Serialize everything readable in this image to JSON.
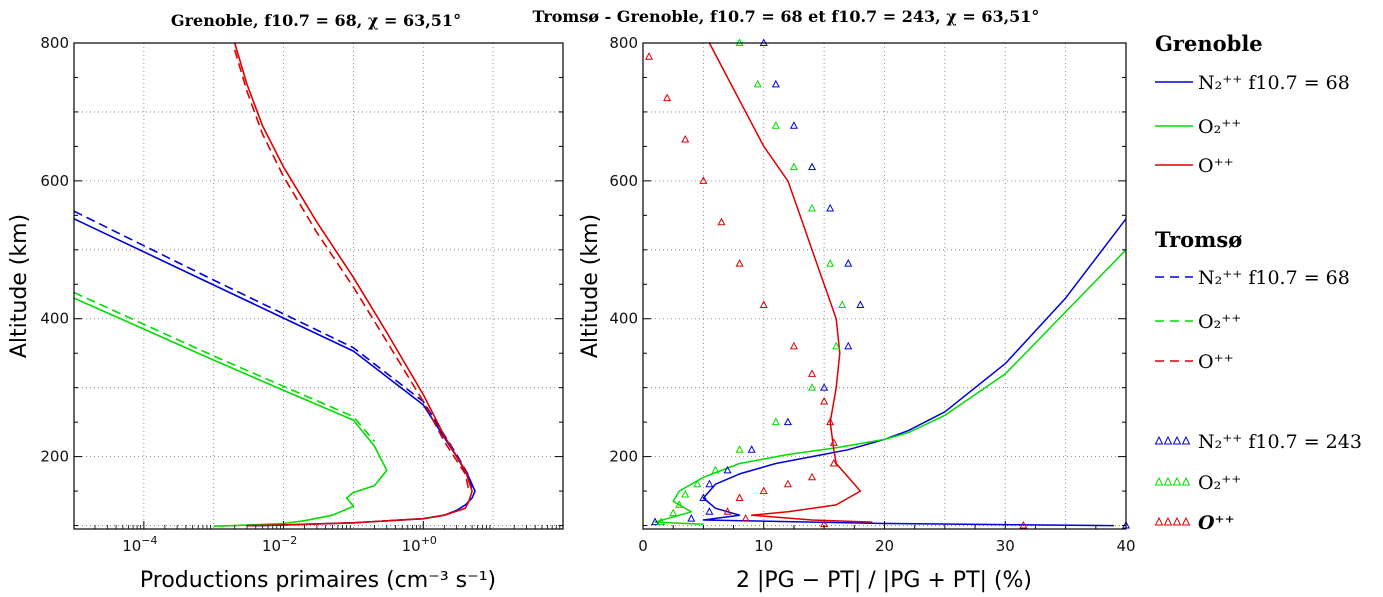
{
  "chart_data": [
    {
      "type": "line",
      "title": "Grenoble, f10.7 = 68, χ = 63,51°",
      "xlabel": "Productions primaires (cm⁻³ s⁻¹)",
      "ylabel": "Altitude (km)",
      "xscale": "log",
      "xlim": [
        1e-05,
        100
      ],
      "ylim": [
        95,
        800
      ],
      "x_ticks": [
        0.0001,
        0.01,
        1
      ],
      "x_tick_labels": [
        "10",
        "10",
        "10"
      ],
      "x_tick_exponents": [
        "−4",
        "−2",
        "+0"
      ],
      "y_ticks": [
        200,
        400,
        600,
        800
      ],
      "grid": true,
      "series": [
        {
          "name": "N2++ Grenoble",
          "color": "#0000dd",
          "dash": "solid",
          "x": [
            1e-05,
            0.0001,
            0.001,
            0.01,
            0.1,
            1,
            3,
            4.5,
            5.5,
            5,
            4,
            3,
            2,
            1,
            0.1,
            0.01,
            0.005,
            0.003
          ],
          "y": [
            545,
            497,
            449,
            401,
            353,
            275,
            200,
            170,
            150,
            140,
            130,
            122,
            115,
            110,
            104,
            101,
            100,
            100
          ]
        },
        {
          "name": "N2++ Tromsø",
          "color": "#0000dd",
          "dash": "dashed",
          "x": [
            1e-05,
            0.0001,
            0.001,
            0.01,
            0.1,
            1,
            3,
            4.5,
            5
          ],
          "y": [
            556,
            506,
            456,
            407,
            358,
            280,
            203,
            172,
            155
          ]
        },
        {
          "name": "O2++ Grenoble",
          "color": "#00dd00",
          "dash": "solid",
          "x": [
            1e-05,
            0.0001,
            0.001,
            0.01,
            0.1,
            0.2,
            0.3,
            0.2,
            0.1,
            0.08,
            0.1,
            0.05,
            0.02,
            0.01,
            0.002,
            0.001
          ],
          "y": [
            430,
            385,
            340,
            296,
            253,
            215,
            180,
            158,
            148,
            140,
            128,
            115,
            107,
            103,
            100,
            99
          ]
        },
        {
          "name": "O2++ Tromsø",
          "color": "#00dd00",
          "dash": "dashed",
          "x": [
            1e-05,
            0.0001,
            0.001,
            0.01,
            0.1,
            0.2
          ],
          "y": [
            438,
            392,
            346,
            302,
            258,
            222
          ]
        },
        {
          "name": "O++ Grenoble",
          "color": "#dd0000",
          "dash": "solid",
          "x": [
            0.002,
            0.003,
            0.005,
            0.01,
            0.03,
            0.1,
            0.3,
            1,
            2,
            4,
            5,
            4.5,
            4,
            2,
            1,
            0.1,
            0.01,
            0.003
          ],
          "y": [
            800,
            740,
            680,
            620,
            540,
            460,
            380,
            290,
            230,
            180,
            150,
            135,
            125,
            115,
            110,
            104,
            101,
            100
          ]
        },
        {
          "name": "O++ Tromsø",
          "color": "#dd0000",
          "dash": "dashed",
          "x": [
            0.002,
            0.003,
            0.005,
            0.01,
            0.03,
            0.1,
            0.3,
            1,
            2,
            4,
            4.5
          ],
          "y": [
            790,
            730,
            668,
            606,
            525,
            446,
            367,
            280,
            222,
            175,
            150
          ]
        }
      ]
    },
    {
      "type": "line",
      "title": "Tromsø - Grenoble, f10.7 = 68 et f10.7 = 243, χ = 63,51°",
      "xlabel": "2 |PG − PT| / |PG + PT| (%)",
      "ylabel": "Altitude (km)",
      "xlim": [
        0,
        40
      ],
      "ylim": [
        95,
        800
      ],
      "x_ticks": [
        0,
        10,
        20,
        30,
        40
      ],
      "y_ticks": [
        200,
        400,
        600,
        800
      ],
      "grid": true,
      "series": [
        {
          "name": "N2++ f10.7 = 68",
          "color": "#0000dd",
          "marker": "line",
          "x": [
            40,
            35,
            30,
            25,
            22,
            20,
            17,
            14,
            11,
            8,
            6,
            5,
            6,
            8,
            5,
            20,
            39
          ],
          "y": [
            545,
            430,
            335,
            265,
            238,
            225,
            210,
            200,
            190,
            175,
            160,
            140,
            125,
            115,
            108,
            103,
            100
          ]
        },
        {
          "name": "O2++ f10.7 = 68",
          "color": "#00dd00",
          "marker": "line",
          "x": [
            40,
            35,
            30,
            25,
            22,
            20,
            16,
            12,
            8,
            5,
            3,
            2.5,
            4,
            2,
            1,
            5
          ],
          "y": [
            500,
            410,
            320,
            260,
            235,
            225,
            213,
            203,
            190,
            170,
            150,
            135,
            120,
            110,
            105,
            102
          ]
        },
        {
          "name": "O++ f10.7 = 68",
          "color": "#dd0000",
          "marker": "line",
          "x": [
            5.5,
            7,
            8.5,
            10,
            12,
            13,
            14,
            15,
            16,
            16.3,
            16,
            15.5,
            15.8,
            16,
            17,
            18,
            16,
            12,
            9,
            14,
            19
          ],
          "y": [
            800,
            750,
            700,
            650,
            600,
            550,
            500,
            450,
            400,
            350,
            300,
            250,
            210,
            190,
            170,
            150,
            130,
            120,
            115,
            108,
            105
          ]
        },
        {
          "name": "N2++ f10.7 = 243",
          "color": "#0000dd",
          "marker": "triangle",
          "x": [
            10,
            11,
            12.5,
            14,
            15.5,
            17,
            18,
            17,
            15,
            12,
            9,
            7,
            5.5,
            5,
            5.5,
            4,
            1,
            40
          ],
          "y": [
            800,
            740,
            680,
            620,
            560,
            480,
            420,
            360,
            300,
            250,
            210,
            180,
            160,
            140,
            120,
            110,
            105,
            100
          ]
        },
        {
          "name": "O2++ f10.7 = 243",
          "color": "#00dd00",
          "marker": "triangle",
          "x": [
            8,
            9.5,
            11,
            12.5,
            14,
            15.5,
            16.5,
            16,
            14,
            11,
            8,
            6,
            4.5,
            3.5,
            3,
            2.5,
            1.5
          ],
          "y": [
            800,
            740,
            680,
            620,
            560,
            480,
            420,
            360,
            300,
            250,
            210,
            180,
            160,
            145,
            130,
            118,
            105
          ]
        },
        {
          "name": "O++ f10.7 = 243",
          "color": "#dd0000",
          "marker": "triangle",
          "x": [
            0.5,
            2,
            3.5,
            5,
            6.5,
            8,
            10,
            12.5,
            14,
            15,
            15.5,
            15.8,
            15.8,
            14,
            12,
            10,
            8,
            7,
            8.5,
            15,
            31.5
          ],
          "y": [
            780,
            720,
            660,
            600,
            540,
            480,
            420,
            360,
            320,
            280,
            250,
            220,
            190,
            170,
            160,
            150,
            140,
            120,
            110,
            102,
            100
          ]
        }
      ]
    }
  ],
  "legend": {
    "grenoble_header": "Grenoble",
    "tromso_header": "Tromsø",
    "items_grenoble": [
      {
        "text": "N₂⁺⁺ f10.7 = 68",
        "color": "#0000dd",
        "style": "solid"
      },
      {
        "text": "O₂⁺⁺",
        "color": "#00dd00",
        "style": "solid"
      },
      {
        "text": "O⁺⁺",
        "color": "#dd0000",
        "style": "solid"
      }
    ],
    "items_tromso": [
      {
        "text": "N₂⁺⁺ f10.7 = 68",
        "color": "#0000dd",
        "style": "dashed"
      },
      {
        "text": "O₂⁺⁺",
        "color": "#00dd00",
        "style": "dashed"
      },
      {
        "text": "O⁺⁺",
        "color": "#dd0000",
        "style": "dashed"
      }
    ],
    "items_243": [
      {
        "text": "N₂⁺⁺ f10.7 = 243",
        "color": "#0000dd",
        "style": "triangle"
      },
      {
        "text": "O₂⁺⁺",
        "color": "#00dd00",
        "style": "triangle"
      },
      {
        "text": "O⁺⁺",
        "color": "#dd0000",
        "style": "triangle"
      }
    ]
  }
}
